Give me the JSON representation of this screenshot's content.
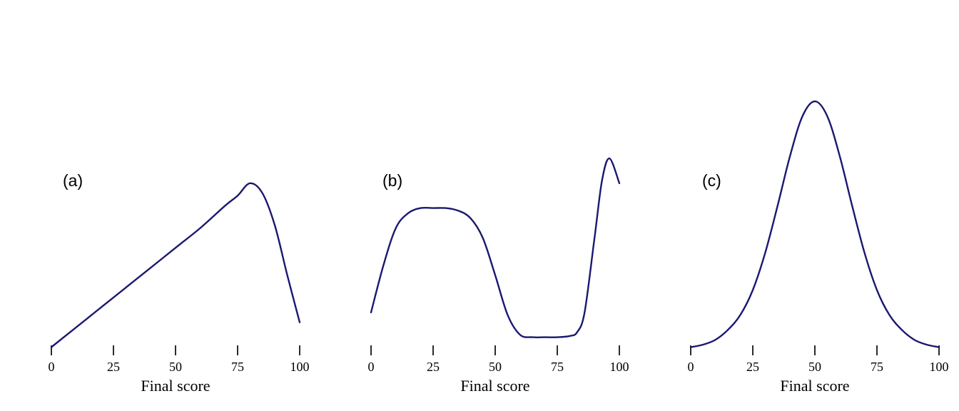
{
  "figure": {
    "background": "#ffffff",
    "description_visible_text_only": true
  },
  "style": {
    "curve_color": "#191970",
    "tick_color": "#2b2b2b",
    "text_color": "#000000"
  },
  "chart_data": [
    {
      "type": "line",
      "panel_label": "(a)",
      "xlabel": "Final score",
      "ylabel": "",
      "xlim": [
        0,
        100
      ],
      "ylim": [
        0,
        1.05
      ],
      "grid": false,
      "y_axis_visible": false,
      "x_ticks": [
        0,
        25,
        50,
        75,
        100
      ],
      "x": [
        0,
        10,
        20,
        30,
        40,
        50,
        60,
        70,
        75,
        80,
        85,
        90,
        95,
        100
      ],
      "y": [
        0.01,
        0.09,
        0.17,
        0.25,
        0.33,
        0.41,
        0.49,
        0.58,
        0.62,
        0.67,
        0.63,
        0.5,
        0.3,
        0.11
      ]
    },
    {
      "type": "line",
      "panel_label": "(b)",
      "xlabel": "Final score",
      "ylabel": "",
      "xlim": [
        0,
        100
      ],
      "ylim": [
        0,
        1.05
      ],
      "grid": false,
      "y_axis_visible": false,
      "x_ticks": [
        0,
        25,
        50,
        75,
        100
      ],
      "x": [
        0,
        5,
        10,
        15,
        20,
        25,
        30,
        35,
        40,
        45,
        50,
        55,
        60,
        65,
        70,
        75,
        80,
        83,
        86,
        90,
        93,
        96,
        100
      ],
      "y": [
        0.15,
        0.34,
        0.49,
        0.55,
        0.57,
        0.57,
        0.57,
        0.56,
        0.53,
        0.45,
        0.3,
        0.14,
        0.06,
        0.05,
        0.05,
        0.05,
        0.055,
        0.07,
        0.15,
        0.45,
        0.68,
        0.77,
        0.67
      ]
    },
    {
      "type": "line",
      "panel_label": "(c)",
      "xlabel": "Final score",
      "ylabel": "",
      "xlim": [
        0,
        100
      ],
      "ylim": [
        0,
        1.05
      ],
      "grid": false,
      "y_axis_visible": false,
      "x_ticks": [
        0,
        25,
        50,
        75,
        100
      ],
      "x": [
        0,
        5,
        10,
        15,
        20,
        25,
        30,
        35,
        40,
        45,
        50,
        55,
        60,
        65,
        70,
        75,
        80,
        85,
        90,
        95,
        100
      ],
      "y": [
        0.01,
        0.02,
        0.04,
        0.08,
        0.14,
        0.24,
        0.39,
        0.58,
        0.78,
        0.94,
        1.0,
        0.94,
        0.78,
        0.58,
        0.39,
        0.24,
        0.14,
        0.08,
        0.04,
        0.02,
        0.01
      ]
    }
  ]
}
